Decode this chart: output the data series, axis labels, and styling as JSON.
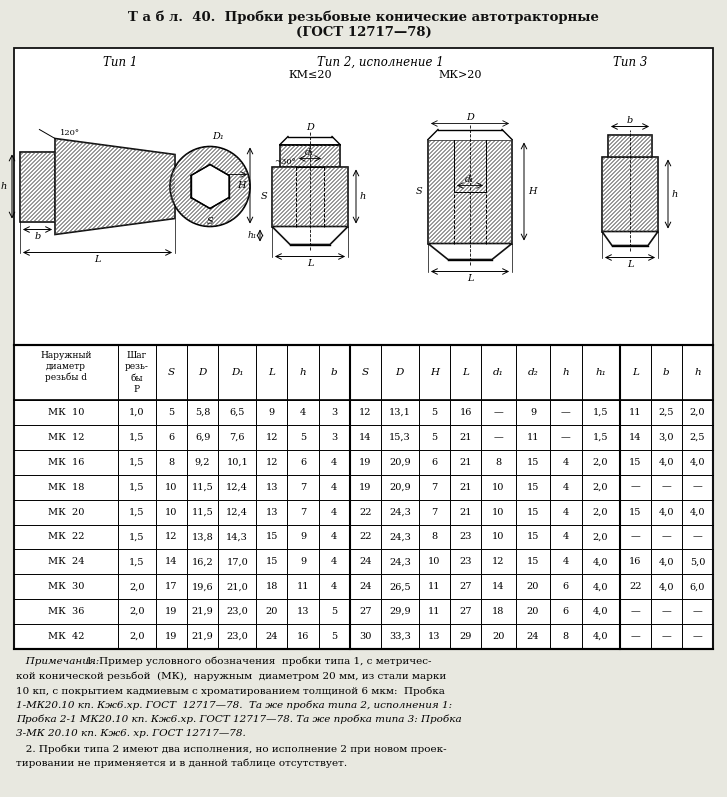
{
  "title_line1": "Т а б л.  40.  Пробки резьбовые конические автотракторные",
  "title_line2": "(ГОСТ 12717—78)",
  "diagram_label1": "Тип 1",
  "diagram_label2": "Тип 2, исполнение 1",
  "diagram_label3": "Тип 3",
  "km20_label": "КМ≤20",
  "mk20_label": "МК>20",
  "col_headers": [
    "S",
    "D",
    "D₁",
    "L",
    "h",
    "b",
    "S",
    "D",
    "H",
    "L",
    "d₁",
    "d₂",
    "h",
    "h₁",
    "L",
    "b",
    "h"
  ],
  "rows": [
    [
      "МК  10",
      "1,0",
      "5",
      "5,8",
      "6,5",
      "9",
      "4",
      "3",
      "12",
      "13,1",
      "5",
      "16",
      "—",
      "9",
      "—",
      "1,5",
      "11",
      "2,5",
      "2,0"
    ],
    [
      "МК  12",
      "1,5",
      "6",
      "6,9",
      "7,6",
      "12",
      "5",
      "3",
      "14",
      "15,3",
      "5",
      "21",
      "—",
      "11",
      "—",
      "1,5",
      "14",
      "3,0",
      "2,5"
    ],
    [
      "МК  16",
      "1,5",
      "8",
      "9,2",
      "10,1",
      "12",
      "6",
      "4",
      "19",
      "20,9",
      "6",
      "21",
      "8",
      "15",
      "4",
      "2,0",
      "15",
      "4,0",
      "4,0"
    ],
    [
      "МК  18",
      "1,5",
      "10",
      "11,5",
      "12,4",
      "13",
      "7",
      "4",
      "19",
      "20,9",
      "7",
      "21",
      "10",
      "15",
      "4",
      "2,0",
      "—",
      "—",
      "—"
    ],
    [
      "МК  20",
      "1,5",
      "10",
      "11,5",
      "12,4",
      "13",
      "7",
      "4",
      "22",
      "24,3",
      "7",
      "21",
      "10",
      "15",
      "4",
      "2,0",
      "15",
      "4,0",
      "4,0"
    ],
    [
      "МК  22",
      "1,5",
      "12",
      "13,8",
      "14,3",
      "15",
      "9",
      "4",
      "22",
      "24,3",
      "8",
      "23",
      "10",
      "15",
      "4",
      "2,0",
      "—",
      "—",
      "—"
    ],
    [
      "МК  24",
      "1,5",
      "14",
      "16,2",
      "17,0",
      "15",
      "9",
      "4",
      "24",
      "24,3",
      "10",
      "23",
      "12",
      "15",
      "4",
      "4,0",
      "16",
      "4,0",
      "5,0"
    ],
    [
      "МК  30",
      "2,0",
      "17",
      "19,6",
      "21,0",
      "18",
      "11",
      "4",
      "24",
      "26,5",
      "11",
      "27",
      "14",
      "20",
      "6",
      "4,0",
      "22",
      "4,0",
      "6,0"
    ],
    [
      "МК  36",
      "2,0",
      "19",
      "21,9",
      "23,0",
      "20",
      "13",
      "5",
      "27",
      "29,9",
      "11",
      "27",
      "18",
      "20",
      "6",
      "4,0",
      "—",
      "—",
      "—"
    ],
    [
      "МК  42",
      "2,0",
      "19",
      "21,9",
      "23,0",
      "24",
      "16",
      "5",
      "30",
      "33,3",
      "13",
      "29",
      "20",
      "24",
      "8",
      "4,0",
      "—",
      "—",
      "—"
    ]
  ],
  "notes_lines": [
    [
      "italic",
      "   Примечания: 1. Пример условного обозначения  пробки типа 1, с метричес-"
    ],
    [
      "normal",
      "кой конической резьбой  (МК),  наружным  диаметром 20 мм, из стали марки"
    ],
    [
      "normal",
      "10 кп, с покрытием кадмиевым с хроматированием толщиной 6 мкм:  Пробка"
    ],
    [
      "italic",
      "1-МК20.10 кп. Кж6.хр. ГОСТ  12717—78.  Та же пробка типа 2, исполнения 1:"
    ],
    [
      "italic",
      "Пробка 2-1 МК20.10 кп. Кж6.хр. ГОСТ 12717—78. Та же пробка типа 3: Пробка"
    ],
    [
      "italic",
      "3-МК 20.10 кп. Кж6. хр. ГОСТ 12717—78."
    ],
    [
      "normal",
      "   2. Пробки типа 2 имеют два исполнения, но исполнение 2 при новом проек-"
    ],
    [
      "normal",
      "тировании не применяется и в данной таблице отсутствует."
    ]
  ],
  "bg_color": "#e8e8e0",
  "text_color": "#111111",
  "border_color": "#111111",
  "white": "#ffffff"
}
